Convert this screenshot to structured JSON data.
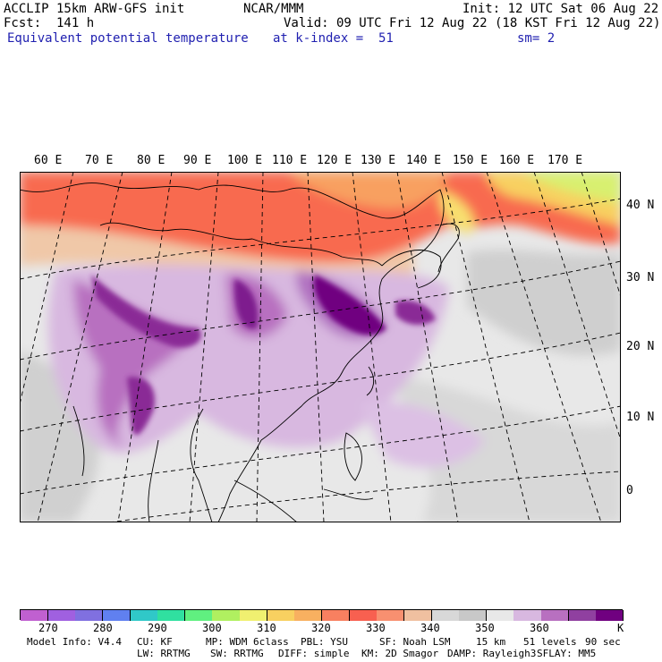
{
  "header": {
    "model": "ACCLIP 15km ARW-GFS init",
    "org": "NCAR/MMM",
    "init": "Init: 12 UTC Sat 06 Aug 22",
    "fcst": "Fcst:  141 h",
    "valid": "Valid: 09 UTC Fri 12 Aug 22 (18 KST Fri 12 Aug 22)",
    "field": "Equivalent potential temperature",
    "level": "at k-index =  51",
    "smooth": "sm= 2"
  },
  "map": {
    "lon_labels": [
      "60 E",
      "70 E",
      "80 E",
      "90 E",
      "100 E",
      "110 E",
      "120 E",
      "130 E",
      "140 E",
      "150 E",
      "160 E",
      "170 E"
    ],
    "lat_labels": [
      "40 N",
      "30 N",
      "20 N",
      "10 N",
      "0"
    ]
  },
  "colorbar": {
    "colors": [
      "#c060d0",
      "#a060e0",
      "#8070e0",
      "#6080f0",
      "#30c8c8",
      "#30e0a0",
      "#60f080",
      "#b0f060",
      "#f0f070",
      "#f8d060",
      "#f8b060",
      "#f88060",
      "#f86050",
      "#f89070",
      "#f0c0a0",
      "#d8d8d8",
      "#c8c8c8",
      "#e8e8e8",
      "#d8b8e0",
      "#b870c0",
      "#9040a0",
      "#700080"
    ],
    "labels": [
      "270",
      "280",
      "290",
      "300",
      "310",
      "320",
      "330",
      "340",
      "350",
      "360"
    ],
    "unit": "K"
  },
  "footer": {
    "line1": [
      "Model Info: V4.4",
      "CU: KF",
      "MP: WDM 6class",
      "PBL: YSU",
      "SF: Noah LSM",
      "15 km",
      "51 levels",
      "90 sec"
    ],
    "line2": [
      "LW: RRTMG",
      "SW: RRTMG",
      "DIFF: simple",
      "KM: 2D Smagor",
      "DAMP: Rayleigh3",
      "SFLAY: MM5"
    ]
  }
}
